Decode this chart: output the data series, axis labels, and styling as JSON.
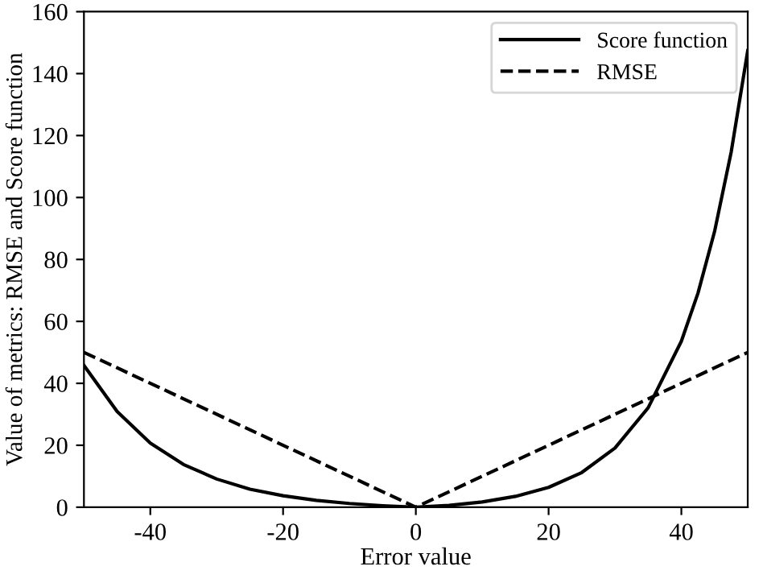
{
  "chart_data": {
    "type": "line",
    "xlabel": "Error value",
    "ylabel": "Value of metrics: RMSE and Score function",
    "xlim": [
      -50,
      50
    ],
    "ylim": [
      0,
      160
    ],
    "xticks": [
      -40,
      -20,
      0,
      20,
      40
    ],
    "yticks": [
      0,
      20,
      40,
      60,
      80,
      100,
      120,
      140,
      160
    ],
    "grid": false,
    "legend": "top right",
    "series": [
      {
        "name": "Score function",
        "color": "#000000",
        "line_style": "solid",
        "x": [
          -50,
          -45,
          -40,
          -35,
          -30,
          -25,
          -20,
          -15,
          -10,
          -5,
          0,
          5,
          10,
          15,
          20,
          25,
          30,
          35,
          40,
          42.5,
          45,
          47.5,
          50
        ],
        "values": [
          45.8,
          30.9,
          20.7,
          13.8,
          9.1,
          5.8,
          3.7,
          2.2,
          1.2,
          0.5,
          0,
          0.6,
          1.7,
          3.5,
          6.4,
          11.2,
          19.1,
          32.1,
          53.6,
          69.1,
          89.0,
          114.6,
          147.4
        ]
      },
      {
        "name": "RMSE",
        "color": "#000000",
        "line_style": "dashed",
        "x": [
          -50,
          0,
          50
        ],
        "values": [
          50,
          0,
          50
        ]
      }
    ]
  }
}
